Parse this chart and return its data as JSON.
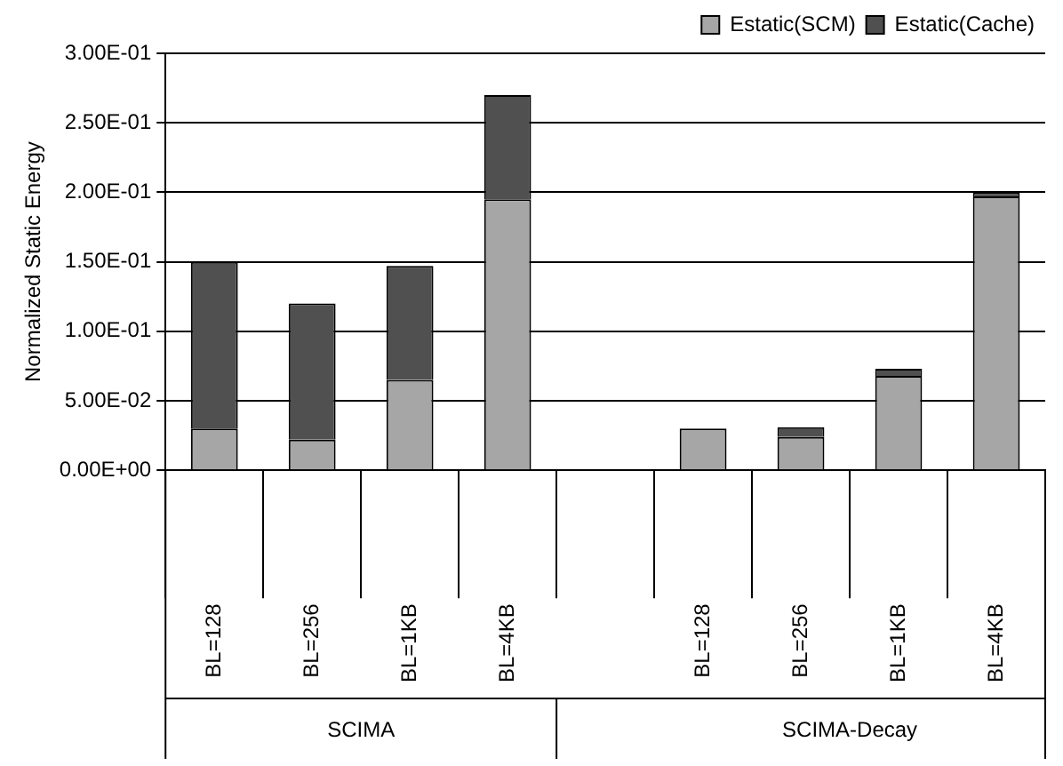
{
  "chart_data": {
    "type": "bar",
    "stacked": true,
    "ylabel": "Normalized Static Energy",
    "categories": [
      "BL=128",
      "BL=256",
      "BL=1KB",
      "BL=4KB",
      null,
      "BL=128",
      "BL=256",
      "BL=1KB",
      "BL=4KB"
    ],
    "series": [
      {
        "name": "Estatic(SCM)",
        "color": "#a6a6a6",
        "values": [
          0.03,
          0.022,
          0.065,
          0.195,
          null,
          0.03,
          0.024,
          0.068,
          0.197
        ]
      },
      {
        "name": "Estatic(Cache)",
        "color": "#505050",
        "values": [
          0.12,
          0.098,
          0.082,
          0.075,
          null,
          null,
          0.007,
          0.005,
          0.003
        ]
      }
    ],
    "ylim": [
      0,
      0.3
    ],
    "yticks": [
      {
        "value": 0,
        "label": "0.00E+00"
      },
      {
        "value": 0.05,
        "label": "5.00E-02"
      },
      {
        "value": 0.1,
        "label": "1.00E-01"
      },
      {
        "value": 0.15,
        "label": "1.50E-01"
      },
      {
        "value": 0.2,
        "label": "2.00E-01"
      },
      {
        "value": 0.25,
        "label": "2.50E-01"
      },
      {
        "value": 0.3,
        "label": "3.00E-01"
      }
    ],
    "grid": "y",
    "legend": "top right",
    "annotations": [
      "SCIMA",
      "SCIMA-Decay"
    ]
  }
}
